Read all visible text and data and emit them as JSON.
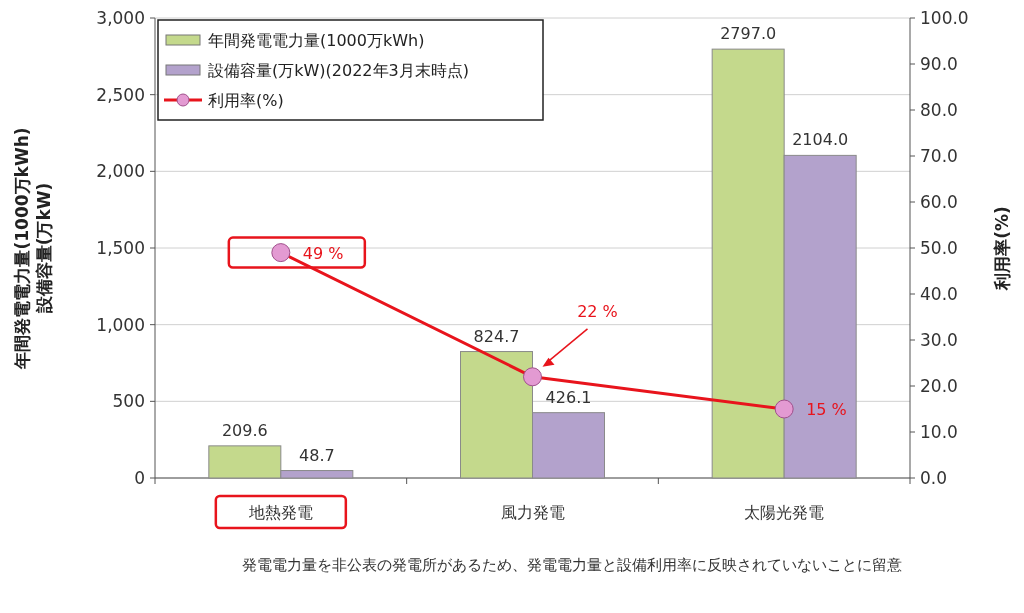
{
  "chart_data": {
    "type": "bar",
    "categories": [
      "地熱発電",
      "風力発電",
      "太陽光発電"
    ],
    "ylabel": "年間発電電力量(1000万kWh)\n設備容量(万kW)",
    "y2label": "利用率(%)",
    "series": [
      {
        "name": "年間発電電力量(1000万kWh)",
        "color": "#c4d98c",
        "values": [
          209.6,
          824.7,
          2797.0
        ],
        "value_labels": [
          "209.6",
          "824.7",
          "2797.0"
        ]
      },
      {
        "name": "設備容量(万kW)(2022年3月末時点)",
        "color": "#b3a2cc",
        "values": [
          48.7,
          426.1,
          2104.0
        ],
        "value_labels": [
          "48.7",
          "426.1",
          "2104.0"
        ]
      },
      {
        "name": "利用率(%)",
        "type": "line",
        "axis": "y2",
        "color": "#e8141c",
        "marker": "circle",
        "values": [
          49,
          22,
          15
        ],
        "value_labels": [
          "49 %",
          "22 %",
          "15 %"
        ]
      }
    ],
    "ylim": [
      0,
      3000
    ],
    "yticks": [
      {
        "value": 0,
        "label": "0"
      },
      {
        "value": 500,
        "label": "500"
      },
      {
        "value": 1000,
        "label": "1,000"
      },
      {
        "value": 1500,
        "label": "1,500"
      },
      {
        "value": 2000,
        "label": "2,000"
      },
      {
        "value": 2500,
        "label": "2,500"
      },
      {
        "value": 3000,
        "label": "3,000"
      }
    ],
    "y2lim": [
      0,
      100
    ],
    "y2ticks": [
      {
        "value": 0,
        "label": "0.0"
      },
      {
        "value": 10,
        "label": "10.0"
      },
      {
        "value": 20,
        "label": "20.0"
      },
      {
        "value": 30,
        "label": "30.0"
      },
      {
        "value": 40,
        "label": "40.0"
      },
      {
        "value": 50,
        "label": "50.0"
      },
      {
        "value": 60,
        "label": "60.0"
      },
      {
        "value": 70,
        "label": "70.0"
      },
      {
        "value": 80,
        "label": "80.0"
      },
      {
        "value": 90,
        "label": "90.0"
      },
      {
        "value": 100,
        "label": "100.0"
      }
    ],
    "grid": "y",
    "legend": "top left",
    "annotations": [
      "発電電力量を非公表の発電所があるため、発電電力量と設備利用率に反映されていないことに留意"
    ]
  }
}
